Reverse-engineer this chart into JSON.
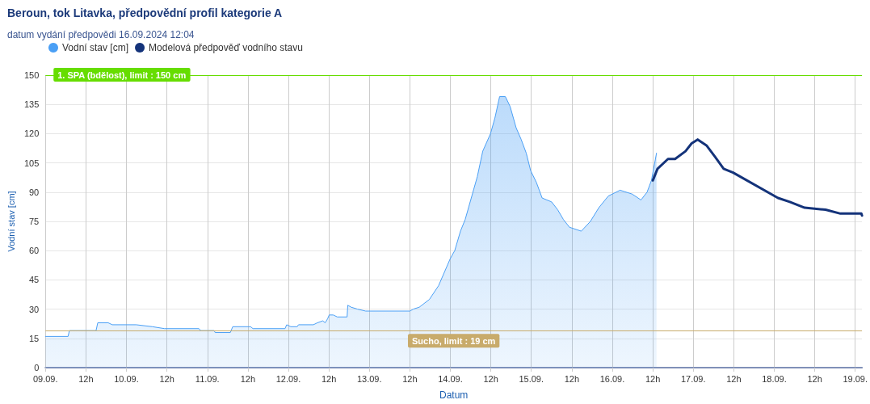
{
  "chart_data": {
    "type": "line",
    "title": "Beroun, tok Litavka, předpovědní profil kategorie A",
    "subtitle": "datum vydání předpovědi 16.09.2024 12:04",
    "xlabel": "Datum",
    "ylabel": "Vodní stav [cm]",
    "series": [
      {
        "name": "Vodní stav [cm]",
        "type": "area",
        "color": "#4a9ff5",
        "x": [
          "2024-09-09T00:00",
          "2024-09-09T06:42",
          "2024-09-09T07:06",
          "2024-09-09T15:00",
          "2024-09-09T15:30",
          "2024-09-09T18:36",
          "2024-09-09T19:48",
          "2024-09-10T02:54",
          "2024-09-10T07:42",
          "2024-09-10T11:18",
          "2024-09-10T21:30",
          "2024-09-10T22:00",
          "2024-09-11T02:00",
          "2024-09-11T02:18",
          "2024-09-11T06:48",
          "2024-09-11T07:30",
          "2024-09-11T12:48",
          "2024-09-11T13:30",
          "2024-09-11T23:00",
          "2024-09-11T23:30",
          "2024-09-12T00:42",
          "2024-09-12T02:36",
          "2024-09-12T03:00",
          "2024-09-12T07:24",
          "2024-09-12T08:36",
          "2024-09-12T10:12",
          "2024-09-12T10:54",
          "2024-09-12T11:36",
          "2024-09-12T12:06",
          "2024-09-12T13:18",
          "2024-09-12T14:30",
          "2024-09-12T17:24",
          "2024-09-12T17:36",
          "2024-09-12T18:36",
          "2024-09-12T20:30",
          "2024-09-12T22:54",
          "2024-09-13T12:00",
          "2024-09-13T13:00",
          "2024-09-13T14:48",
          "2024-09-13T17:48",
          "2024-09-13T20:30",
          "2024-09-14T00:00",
          "2024-09-14T01:18",
          "2024-09-14T03:00",
          "2024-09-14T04:24",
          "2024-09-14T06:12",
          "2024-09-14T08:00",
          "2024-09-14T09:36",
          "2024-09-14T11:54",
          "2024-09-14T13:12",
          "2024-09-14T14:36",
          "2024-09-14T16:18",
          "2024-09-14T17:42",
          "2024-09-14T19:30",
          "2024-09-14T21:00",
          "2024-09-14T22:30",
          "2024-09-14T23:48",
          "2024-09-15T01:30",
          "2024-09-15T03:12",
          "2024-09-15T06:00",
          "2024-09-15T07:48",
          "2024-09-15T09:30",
          "2024-09-15T11:18",
          "2024-09-15T14:48",
          "2024-09-15T17:30",
          "2024-09-15T20:00",
          "2024-09-15T22:48",
          "2024-09-16T02:18",
          "2024-09-16T05:54",
          "2024-09-16T08:30",
          "2024-09-16T10:18",
          "2024-09-16T11:36",
          "2024-09-16T13:06"
        ],
        "values": [
          16,
          16,
          19,
          19,
          23,
          23,
          22,
          22,
          21,
          20,
          20,
          19,
          19,
          18,
          18,
          21,
          21,
          20,
          20,
          22,
          21,
          21,
          22,
          22,
          23,
          24,
          23,
          25,
          27,
          27,
          26,
          26,
          32,
          31,
          30,
          29,
          29,
          30,
          31,
          35,
          42,
          56,
          60,
          70,
          76,
          87,
          98,
          111,
          120,
          128,
          139,
          139,
          134,
          123,
          117,
          110,
          101,
          95,
          87,
          85,
          81,
          76,
          72,
          70,
          75,
          82,
          88,
          91,
          89,
          86,
          90,
          96,
          110
        ]
      },
      {
        "name": "Modelová předpověď vodního stavu",
        "type": "line",
        "color": "#14337a",
        "x": [
          "2024-09-16T12:00",
          "2024-09-16T13:24",
          "2024-09-16T16:30",
          "2024-09-16T18:36",
          "2024-09-16T21:42",
          "2024-09-16T23:30",
          "2024-09-17T01:18",
          "2024-09-17T03:54",
          "2024-09-17T06:30",
          "2024-09-17T09:00",
          "2024-09-17T11:48",
          "2024-09-18T01:06",
          "2024-09-18T04:36",
          "2024-09-18T09:00",
          "2024-09-18T15:12",
          "2024-09-18T19:36",
          "2024-09-19T01:48",
          "2024-09-19T02:00"
        ],
        "values": [
          96,
          102,
          107,
          107,
          111,
          115,
          117,
          114,
          108,
          102,
          100,
          87,
          85,
          82,
          81,
          79,
          79,
          78
        ]
      }
    ],
    "xlim": [
      "2024-09-09T00:00",
      "2024-09-19T02:00"
    ],
    "xticks": [
      {
        "value": "2024-09-09T00:00",
        "label": "09.09."
      },
      {
        "value": "2024-09-09T12:00",
        "label": "12h"
      },
      {
        "value": "2024-09-10T00:00",
        "label": "10.09."
      },
      {
        "value": "2024-09-10T12:00",
        "label": "12h"
      },
      {
        "value": "2024-09-11T00:00",
        "label": "11.09."
      },
      {
        "value": "2024-09-11T12:00",
        "label": "12h"
      },
      {
        "value": "2024-09-12T00:00",
        "label": "12.09."
      },
      {
        "value": "2024-09-12T12:00",
        "label": "12h"
      },
      {
        "value": "2024-09-13T00:00",
        "label": "13.09."
      },
      {
        "value": "2024-09-13T12:00",
        "label": "12h"
      },
      {
        "value": "2024-09-14T00:00",
        "label": "14.09."
      },
      {
        "value": "2024-09-14T12:00",
        "label": "12h"
      },
      {
        "value": "2024-09-15T00:00",
        "label": "15.09."
      },
      {
        "value": "2024-09-15T12:00",
        "label": "12h"
      },
      {
        "value": "2024-09-16T00:00",
        "label": "16.09."
      },
      {
        "value": "2024-09-16T12:00",
        "label": "12h"
      },
      {
        "value": "2024-09-17T00:00",
        "label": "17.09."
      },
      {
        "value": "2024-09-17T12:00",
        "label": "12h"
      },
      {
        "value": "2024-09-18T00:00",
        "label": "18.09."
      },
      {
        "value": "2024-09-18T12:00",
        "label": "12h"
      },
      {
        "value": "2024-09-19T00:00",
        "label": "19.09."
      }
    ],
    "ylim": [
      0,
      150
    ],
    "yticks": [
      0,
      15,
      30,
      45,
      60,
      75,
      90,
      105,
      120,
      135,
      150
    ],
    "ref_lines": [
      {
        "axis": "y",
        "value": 150,
        "label": "1. SPA (bdělost), limit : 150 cm",
        "color": "#66dd00"
      },
      {
        "axis": "y",
        "value": 19,
        "label": "Sucho, limit : 19 cm",
        "color": "#c8ab6b"
      }
    ],
    "grid": true,
    "legend": "top",
    "marker": "none",
    "line_style": "solid"
  }
}
